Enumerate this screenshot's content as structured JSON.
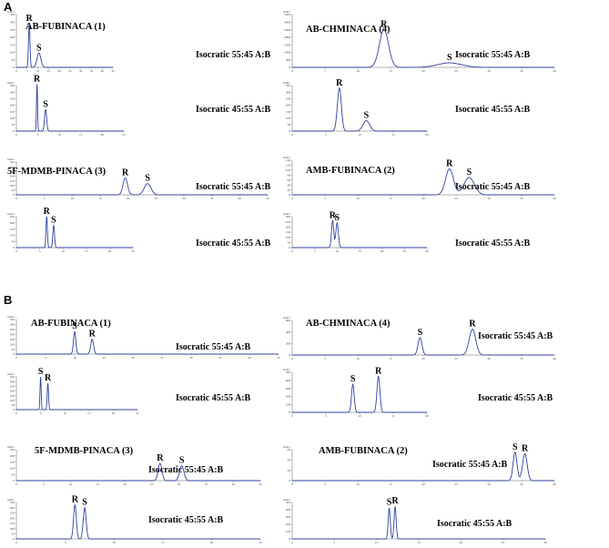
{
  "section_a_label": "A",
  "section_b_label": "B",
  "chart_data": [
    {
      "type": "line",
      "section": "A",
      "compound": "AB-FUBINACA (1)",
      "condition": "Isocratic 55:45 A:B",
      "xlim": [
        0,
        45
      ],
      "yticks": [
        "0",
        "50",
        "100",
        "150",
        "200",
        "250",
        "300",
        "350"
      ],
      "unit": "mAU",
      "peaks": [
        {
          "label": "R",
          "t": 6.0,
          "h": 290,
          "w": 0.35
        },
        {
          "label": "S",
          "t": 10.5,
          "h": 95,
          "w": 0.9
        }
      ]
    },
    {
      "type": "line",
      "section": "A",
      "compound": "AB-FUBINACA (1)",
      "condition": "Isocratic 45:55 A:B",
      "xlim": [
        0,
        25
      ],
      "yticks": [
        "0",
        "50",
        "100",
        "150",
        "200",
        "250",
        "300",
        "350"
      ],
      "unit": "mAU",
      "peaks": [
        {
          "label": "R",
          "t": 4.8,
          "h": 360,
          "w": 0.12
        },
        {
          "label": "S",
          "t": 6.8,
          "h": 165,
          "w": 0.25
        }
      ]
    },
    {
      "type": "line",
      "section": "A",
      "compound": "AB-CHMINACA (4)",
      "condition": "Isocratic 55:45 A:B",
      "xlim": [
        0,
        40
      ],
      "yticks": [
        "0",
        "500",
        "1000",
        "1500",
        "2000",
        "2500",
        "3000",
        "3500"
      ],
      "unit": "mAU",
      "peaks": [
        {
          "label": "R",
          "t": 14.0,
          "h": 2500,
          "w": 0.7
        },
        {
          "label": "S",
          "t": 24.0,
          "h": 300,
          "w": 1.8
        }
      ]
    },
    {
      "type": "line",
      "section": "A",
      "compound": "AB-CHMINACA (4)",
      "condition": "Isocratic 45:55 A:B",
      "xlim": [
        0,
        20
      ],
      "yticks": [
        "0",
        "50",
        "100",
        "150",
        "200",
        "250",
        "300",
        "350"
      ],
      "unit": "mAU",
      "peaks": [
        {
          "label": "R",
          "t": 7.0,
          "h": 330,
          "w": 0.3
        },
        {
          "label": "S",
          "t": 11.0,
          "h": 80,
          "w": 0.5
        }
      ]
    },
    {
      "type": "line",
      "section": "A",
      "compound": "5F-MDMB-PINACA (3)",
      "condition": "Isocratic 55:45 A:B",
      "xlim": [
        0,
        45
      ],
      "yticks": [
        "0",
        "50",
        "100",
        "150",
        "200",
        "250",
        "300",
        "350"
      ],
      "unit": "mAU",
      "peaks": [
        {
          "label": "R",
          "t": 19.5,
          "h": 180,
          "w": 0.4
        },
        {
          "label": "S",
          "t": 23.5,
          "h": 120,
          "w": 0.6
        }
      ]
    },
    {
      "type": "line",
      "section": "A",
      "compound": "5F-MDMB-PINACA (3)",
      "condition": "Isocratic 45:55 A:B",
      "xlim": [
        0,
        25
      ],
      "yticks": [
        "0",
        "50",
        "100",
        "150",
        "200",
        "250"
      ],
      "unit": "mAU",
      "peaks": [
        {
          "label": "R",
          "t": 6.5,
          "h": 250,
          "w": 0.15
        },
        {
          "label": "S",
          "t": 8.0,
          "h": 180,
          "w": 0.18
        }
      ]
    },
    {
      "type": "line",
      "section": "A",
      "compound": "AMB-FUBINACA (2)",
      "condition": "Isocratic 55:45 A:B",
      "xlim": [
        0,
        40
      ],
      "yticks": [
        "0",
        "20",
        "40",
        "60",
        "80",
        "100",
        "120",
        "140"
      ],
      "unit": "mAU",
      "peaks": [
        {
          "label": "R",
          "t": 24.0,
          "h": 105,
          "w": 0.6
        },
        {
          "label": "S",
          "t": 27.0,
          "h": 70,
          "w": 0.8
        }
      ]
    },
    {
      "type": "line",
      "section": "A",
      "compound": "AMB-FUBINACA (2)",
      "condition": "Isocratic 45:55 A:B",
      "xlim": [
        0,
        30
      ],
      "yticks": [
        "0",
        "50",
        "100",
        "150",
        "200",
        "250",
        "300"
      ],
      "unit": "mAU",
      "peaks": [
        {
          "label": "R",
          "t": 9.0,
          "h": 260,
          "w": 0.25
        },
        {
          "label": "S",
          "t": 10.0,
          "h": 240,
          "w": 0.28
        }
      ]
    },
    {
      "type": "line",
      "section": "B",
      "compound": "AB-FUBINACA (1)",
      "condition": "Isocratic 55:45 A:B",
      "xlim": [
        0,
        45
      ],
      "yticks": [
        "0",
        "50",
        "100",
        "150",
        "200",
        "250",
        "300",
        "350"
      ],
      "unit": "mAU",
      "peaks": [
        {
          "label": "S",
          "t": 10.0,
          "h": 230,
          "w": 0.2
        },
        {
          "label": "R",
          "t": 13.0,
          "h": 150,
          "w": 0.25
        }
      ]
    },
    {
      "type": "line",
      "section": "B",
      "compound": "AB-FUBINACA (1)",
      "condition": "Isocratic 45:55 A:B",
      "xlim": [
        0,
        25
      ],
      "yticks": [
        "0",
        "50",
        "100",
        "150",
        "200",
        "250",
        "300",
        "350"
      ],
      "unit": "mAU",
      "peaks": [
        {
          "label": "S",
          "t": 5.0,
          "h": 350,
          "w": 0.12
        },
        {
          "label": "R",
          "t": 6.5,
          "h": 280,
          "w": 0.14
        }
      ]
    },
    {
      "type": "line",
      "section": "B",
      "compound": "AB-CHMINACA (4)",
      "condition": "Isocratic 55:45 A:B",
      "xlim": [
        0,
        40
      ],
      "yticks": [
        "0",
        "200",
        "400",
        "600"
      ],
      "unit": "mAU",
      "peaks": [
        {
          "label": "S",
          "t": 19.5,
          "h": 300,
          "w": 0.3
        },
        {
          "label": "R",
          "t": 27.5,
          "h": 450,
          "w": 0.5
        }
      ]
    },
    {
      "type": "line",
      "section": "B",
      "compound": "AB-CHMINACA (4)",
      "condition": "Isocratic 45:55 A:B",
      "xlim": [
        0,
        20
      ],
      "yticks": [
        "0",
        "100",
        "200",
        "300",
        "400",
        "500"
      ],
      "unit": "mAU",
      "peaks": [
        {
          "label": "S",
          "t": 9.0,
          "h": 350,
          "w": 0.2
        },
        {
          "label": "R",
          "t": 12.8,
          "h": 450,
          "w": 0.22
        }
      ]
    },
    {
      "type": "line",
      "section": "B",
      "compound": "5F-MDMB-PINACA (3)",
      "condition": "Isocratic 55:45 A:B",
      "xlim": [
        0,
        45
      ],
      "yticks": [
        "0",
        "50",
        "100",
        "150",
        "200",
        "250"
      ],
      "unit": "mAU",
      "peaks": [
        {
          "label": "R",
          "t": 26.5,
          "h": 140,
          "w": 0.35
        },
        {
          "label": "S",
          "t": 30.5,
          "h": 120,
          "w": 0.4
        }
      ]
    },
    {
      "type": "line",
      "section": "B",
      "compound": "5F-MDMB-PINACA (3)",
      "condition": "Isocratic 45:55 A:B",
      "xlim": [
        0,
        25
      ],
      "yticks": [
        "0",
        "50",
        "100",
        "150",
        "200",
        "250",
        "300",
        "350"
      ],
      "unit": "mAU",
      "peaks": [
        {
          "label": "R",
          "t": 6.0,
          "h": 330,
          "w": 0.14
        },
        {
          "label": "S",
          "t": 7.0,
          "h": 300,
          "w": 0.15
        }
      ]
    },
    {
      "type": "line",
      "section": "B",
      "compound": "AMB-FUBINACA (2)",
      "condition": "Isocratic 55:45 A:B",
      "xlim": [
        0,
        40
      ],
      "yticks": [
        "0",
        "20",
        "40",
        "60"
      ],
      "unit": "mAU",
      "peaks": [
        {
          "label": "S",
          "t": 34.0,
          "h": 55,
          "w": 0.3
        },
        {
          "label": "R",
          "t": 35.5,
          "h": 52,
          "w": 0.35
        }
      ]
    },
    {
      "type": "line",
      "section": "B",
      "compound": "AMB-FUBINACA (2)",
      "condition": "Isocratic 45:55 A:B",
      "xlim": [
        0,
        30
      ],
      "yticks": [
        "0",
        "100",
        "200",
        "300",
        "400",
        "500"
      ],
      "unit": "mAU",
      "peaks": [
        {
          "label": "S",
          "t": 11.5,
          "h": 430,
          "w": 0.12
        },
        {
          "label": "R",
          "t": 12.2,
          "h": 450,
          "w": 0.12
        }
      ]
    }
  ]
}
